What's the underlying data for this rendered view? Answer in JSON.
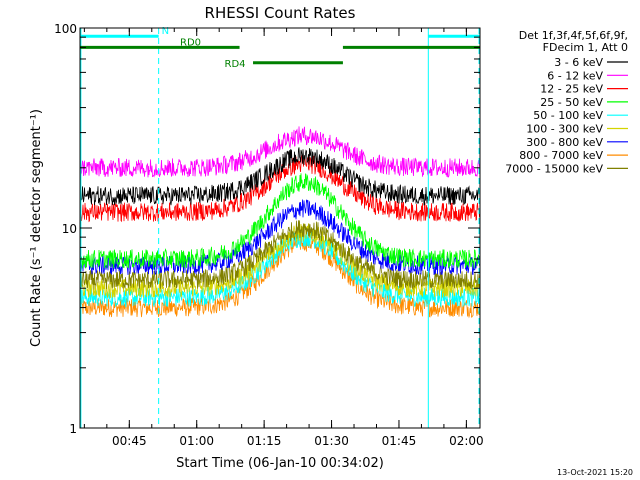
{
  "chart_data": {
    "type": "line",
    "title": "RHESSI Count Rates",
    "xlabel": "Start Time (06-Jan-10 00:34:02)",
    "ylabel": "Count Rate (s⁻¹ detector segment⁻¹)",
    "yscale": "log",
    "ylim": [
      1,
      100
    ],
    "xlim_minutes": [
      0,
      89
    ],
    "x_ticks": [
      {
        "t": 10.97,
        "label": "00:45"
      },
      {
        "t": 25.97,
        "label": "01:00"
      },
      {
        "t": 40.97,
        "label": "01:15"
      },
      {
        "t": 55.97,
        "label": "01:30"
      },
      {
        "t": 70.97,
        "label": "01:45"
      },
      {
        "t": 85.97,
        "label": "02:00"
      }
    ],
    "y_ticks": [
      {
        "v": 1,
        "label": "1"
      },
      {
        "v": 10,
        "label": "10"
      },
      {
        "v": 100,
        "label": "100"
      }
    ],
    "legend_header": [
      "Det 1f,3f,4f,5f,6f,9f,",
      "FDecim 1, Att 0"
    ],
    "legend_position": "right",
    "series": [
      {
        "name": "3 - 6 keV",
        "color": "#000000",
        "base": 14.5,
        "peak": 23
      },
      {
        "name": "6 - 12 keV",
        "color": "#ff00ff",
        "base": 20,
        "peak": 29
      },
      {
        "name": "12 - 25 keV",
        "color": "#ff0000",
        "base": 12,
        "peak": 21
      },
      {
        "name": "25 - 50 keV",
        "color": "#00ff00",
        "base": 7,
        "peak": 17
      },
      {
        "name": "50 - 100 keV",
        "color": "#00ffff",
        "base": 4.5,
        "peak": 9
      },
      {
        "name": "100 - 300 keV",
        "color": "#d4d400",
        "base": 5,
        "peak": 9.5
      },
      {
        "name": "300 - 800 keV",
        "color": "#0000ff",
        "base": 6.5,
        "peak": 12.5
      },
      {
        "name": "800 - 7000 keV",
        "color": "#ff8c00",
        "base": 4,
        "peak": 8.5
      },
      {
        "name": "7000 - 15000 keV",
        "color": "#808000",
        "base": 5.5,
        "peak": 10
      }
    ],
    "peak_time_minutes": 50,
    "peak_width_minutes": 8,
    "segments": [
      {
        "label": "N",
        "color": "#00ffff",
        "y": 91,
        "ranges": [
          [
            0,
            17.5
          ],
          [
            77.5,
            89
          ]
        ]
      },
      {
        "label": "RD0",
        "color": "#008000",
        "y": 80,
        "ranges": [
          [
            0,
            35.5
          ],
          [
            58.5,
            89
          ]
        ]
      },
      {
        "label": "RD4",
        "color": "#008000",
        "y": 67,
        "ranges": [
          [
            38.5,
            58.5
          ]
        ]
      }
    ],
    "vlines": [
      {
        "t": 0.2,
        "style": "solid"
      },
      {
        "t": 17.5,
        "style": "dashed"
      },
      {
        "t": 77.5,
        "style": "solid"
      },
      {
        "t": 89,
        "style": "dashed"
      }
    ]
  },
  "footer_timestamp": "13-Oct-2021 15:20"
}
